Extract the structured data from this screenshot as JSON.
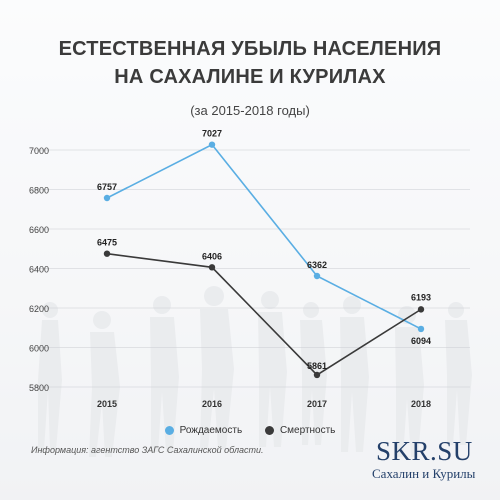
{
  "title_line1": "ЕСТЕСТВЕННАЯ УБЫЛЬ НАСЕЛЕНИЯ",
  "title_line2": "НА САХАЛИНЕ И КУРИЛАХ",
  "subtitle": "(за 2015-2018 годы)",
  "source": "Информация: агентство ЗАГС Сахалинской области.",
  "brand": "SKR.SU",
  "brand_sub": "Сахалин и Курилы",
  "colors": {
    "births": "#5aaee3",
    "deaths": "#3a3a3a"
  },
  "chart_data": {
    "type": "line",
    "title": "ЕСТЕСТВЕННАЯ УБЫЛЬ НАСЕЛЕНИЯ НА САХАЛИНЕ И КУРИЛАХ",
    "subtitle": "(за 2015-2018 годы)",
    "categories": [
      "2015",
      "2016",
      "2017",
      "2018"
    ],
    "yticks": [
      5800,
      6000,
      6200,
      6400,
      6600,
      6800,
      7000
    ],
    "ylim": [
      5800,
      7000
    ],
    "grid": true,
    "legend_position": "bottom",
    "series": [
      {
        "name": "Рождаемость",
        "color": "#5aaee3",
        "values": [
          6757,
          7027,
          6362,
          6094
        ]
      },
      {
        "name": "Смертность",
        "color": "#3a3a3a",
        "values": [
          6475,
          6406,
          5861,
          6193
        ]
      }
    ]
  }
}
